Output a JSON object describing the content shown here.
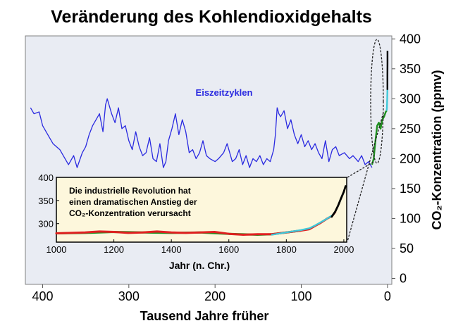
{
  "colors": {
    "plot_bg": "#e9ecf3",
    "inset_bg": "#fdf7dc",
    "ice_core": "#2a2ae0",
    "black": "#000000",
    "cyan": "#40c8d8",
    "green": "#1f8f1f",
    "red": "#e02020"
  },
  "chart_data": [
    {
      "type": "line",
      "title": "Veränderung des Kohlendioxidgehalts",
      "xlabel": "Tausend Jahre früher",
      "ylabel": "CO₂-Konzentration (ppmv)",
      "xlim": [
        420,
        -5
      ],
      "ylim": [
        -10,
        405
      ],
      "x_ticks": [
        400,
        300,
        200,
        100,
        0
      ],
      "y_ticks": [
        0,
        50,
        100,
        150,
        200,
        250,
        300,
        350,
        400
      ],
      "grid": false,
      "series": [
        {
          "name": "Eiszeitzyklen",
          "color": "#2a2ae0",
          "x": [
            414,
            410,
            404,
            400,
            394,
            388,
            380,
            374,
            370,
            364,
            360,
            354,
            350,
            346,
            342,
            338,
            334,
            330,
            327,
            325,
            320,
            316,
            312,
            308,
            304,
            300,
            296,
            292,
            288,
            284,
            280,
            276,
            272,
            268,
            264,
            260,
            257,
            254,
            250,
            246,
            242,
            238,
            234,
            230,
            226,
            222,
            218,
            214,
            210,
            206,
            200,
            196,
            190,
            186,
            180,
            176,
            172,
            168,
            164,
            160,
            156,
            152,
            148,
            144,
            140,
            136,
            132,
            130,
            128,
            126,
            124,
            120,
            116,
            112,
            108,
            104,
            100,
            96,
            92,
            88,
            84,
            80,
            76,
            72,
            68,
            64,
            60,
            56,
            50,
            44,
            40,
            34,
            30,
            26,
            22,
            18
          ],
          "y": [
            285,
            275,
            278,
            255,
            240,
            225,
            215,
            200,
            190,
            205,
            185,
            210,
            220,
            240,
            255,
            265,
            275,
            245,
            290,
            300,
            275,
            260,
            285,
            250,
            255,
            230,
            215,
            245,
            220,
            205,
            210,
            235,
            200,
            195,
            225,
            185,
            195,
            230,
            250,
            275,
            240,
            265,
            245,
            210,
            215,
            200,
            210,
            230,
            205,
            200,
            195,
            200,
            210,
            225,
            195,
            200,
            215,
            190,
            205,
            185,
            200,
            195,
            205,
            190,
            200,
            195,
            215,
            240,
            285,
            275,
            270,
            280,
            250,
            265,
            240,
            225,
            240,
            220,
            230,
            215,
            225,
            210,
            200,
            230,
            195,
            215,
            220,
            205,
            210,
            200,
            205,
            195,
            205,
            190,
            195,
            185
          ]
        },
        {
          "name": "",
          "color": "#1f8f1f",
          "x": [
            18,
            16,
            14,
            12,
            10,
            8,
            6,
            4,
            2,
            1
          ],
          "y": [
            190,
            200,
            230,
            255,
            260,
            250,
            265,
            270,
            278,
            280
          ]
        },
        {
          "name": "",
          "color": "#40c8d8",
          "x": [
            1,
            0.6,
            0.3,
            0.1
          ],
          "y": [
            280,
            285,
            300,
            315
          ]
        },
        {
          "name": "",
          "color": "#000000",
          "x": [
            0.1,
            0.05,
            0.02,
            0.0
          ],
          "y": [
            315,
            340,
            360,
            380
          ]
        }
      ],
      "annotations": [
        "Eiszeitzyklen"
      ]
    },
    {
      "type": "line",
      "xlabel": "Jahr (n. Chr.)",
      "ylabel": "",
      "xlim": [
        1000,
        2010
      ],
      "ylim": [
        260,
        400
      ],
      "x_ticks": [
        1000,
        1200,
        1400,
        1600,
        1800,
        2000
      ],
      "y_ticks": [
        300,
        350,
        400
      ],
      "grid": false,
      "annotation_lines": [
        "Die industrielle Revolution hat",
        "einen dramatischen Anstieg der",
        "CO₂-Konzentration verursacht"
      ],
      "series": [
        {
          "name": "",
          "color": "#1f8f1f",
          "x": [
            1000,
            1100,
            1200,
            1300,
            1400,
            1500,
            1600,
            1700,
            1750,
            1800,
            1850
          ],
          "y": [
            279,
            280,
            282,
            281,
            280,
            281,
            278,
            276,
            277,
            281,
            285
          ]
        },
        {
          "name": "",
          "color": "#e02020",
          "x": [
            1000,
            1050,
            1100,
            1150,
            1200,
            1250,
            1300,
            1350,
            1400,
            1450,
            1500,
            1550,
            1600,
            1650,
            1700,
            1750,
            1800,
            1850,
            1880,
            1900,
            1920,
            1940,
            1960,
            1970
          ],
          "y": [
            279,
            280,
            281,
            283,
            282,
            280,
            281,
            283,
            281,
            280,
            281,
            282,
            278,
            276,
            277,
            277,
            281,
            285,
            288,
            295,
            302,
            310,
            317,
            325
          ]
        },
        {
          "name": "",
          "color": "#40c8d8",
          "x": [
            1750,
            1800,
            1850,
            1880,
            1900,
            1920,
            1940,
            1960,
            1970
          ],
          "y": [
            276,
            281,
            286,
            290,
            296,
            303,
            310,
            318,
            325
          ]
        },
        {
          "name": "",
          "color": "#000000",
          "x": [
            1958,
            1970,
            1980,
            1990,
            2000,
            2006
          ],
          "y": [
            315,
            326,
            339,
            354,
            369,
            381
          ]
        }
      ]
    }
  ]
}
